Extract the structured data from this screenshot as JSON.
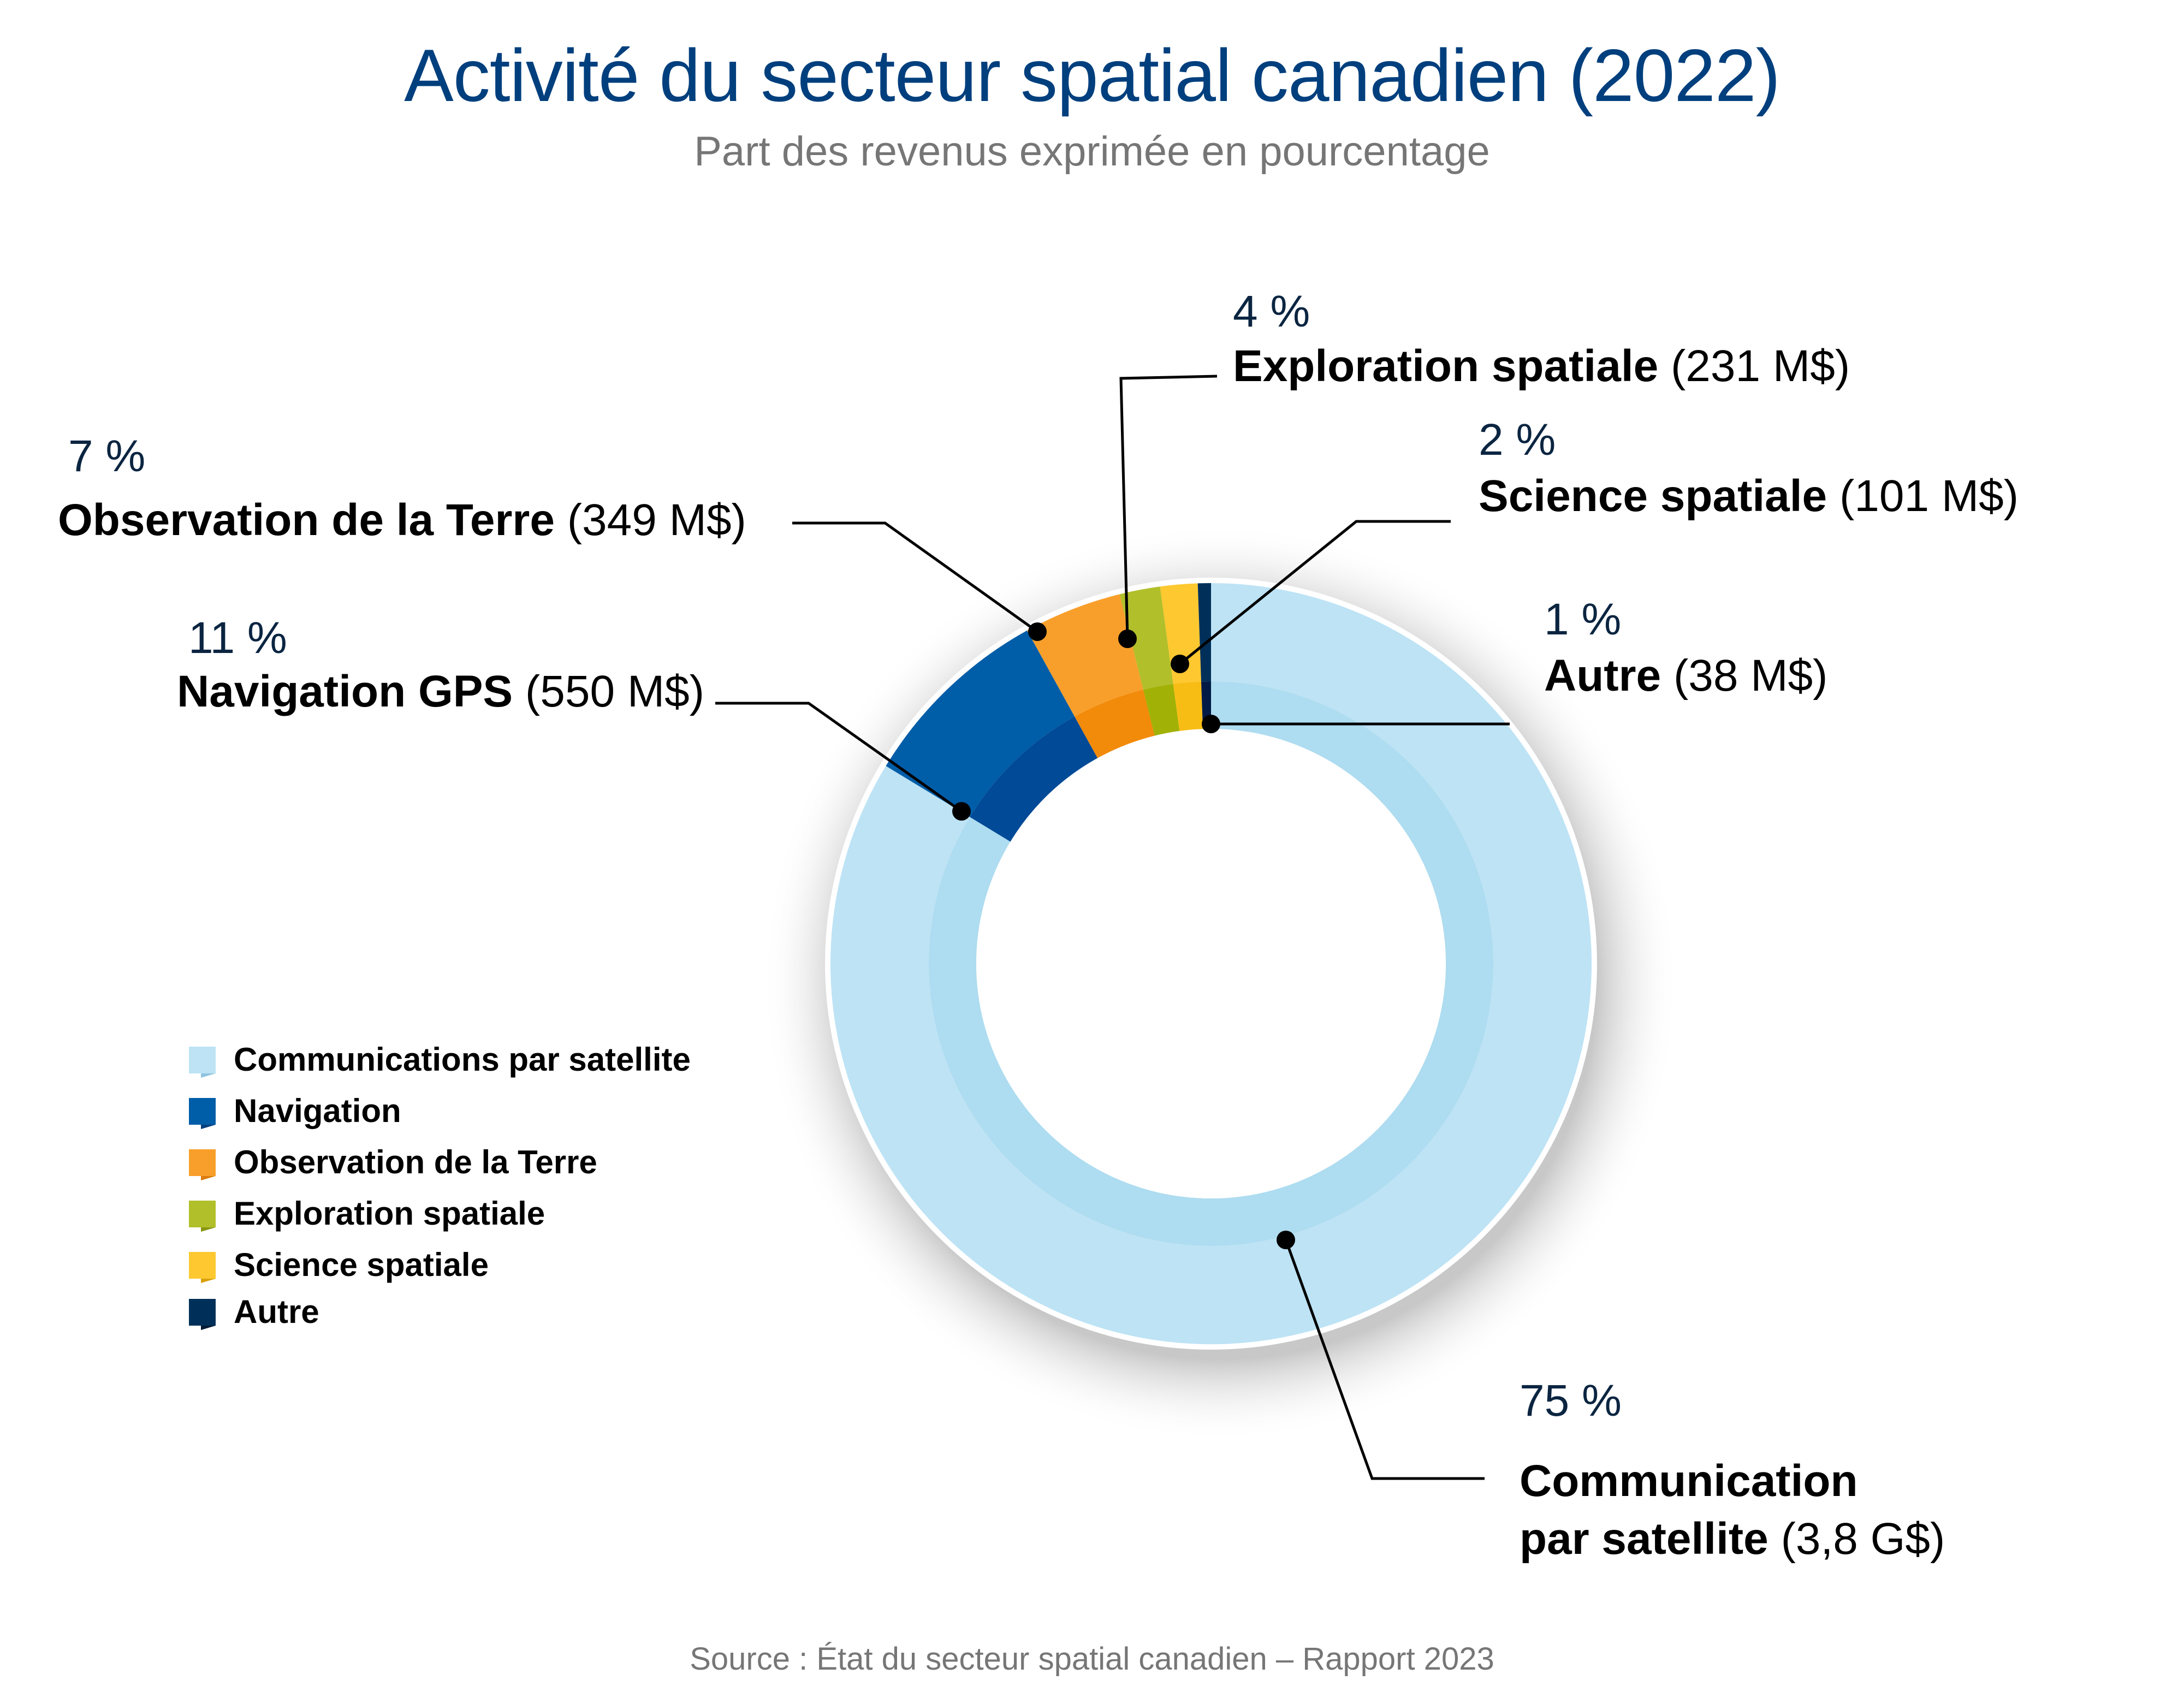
{
  "header": {
    "title": "Activité du secteur spatial canadien (2022)",
    "subtitle": "Part des revenus exprimée en pourcentage"
  },
  "footer": {
    "source": "Source : État du secteur spatial canadien – Rapport 2023"
  },
  "colors": {
    "title": "#003F7D",
    "subtitle": "#767676",
    "percent_text": "#0B2541"
  },
  "chart_data": {
    "type": "pie",
    "variant": "donut",
    "title": "Activité du secteur spatial canadien (2022)",
    "subtitle": "Part des revenus exprimée en pourcentage",
    "unit": "%",
    "legend_position": "left",
    "slices": [
      {
        "key": "communication",
        "legend": "Communications par satellite",
        "callout_line1": "Communication",
        "callout_line2": "par satellite",
        "amount": "(3,8 G$)",
        "percent": 75,
        "percent_label": "75 %",
        "color": "#BDE3F5",
        "inner_color": "#AEDCF0"
      },
      {
        "key": "navigation",
        "legend": "Navigation",
        "callout_name": "Navigation GPS",
        "amount": "(550 M$)",
        "percent": 11,
        "percent_label": "11 %",
        "color": "#005DA8",
        "inner_color": "#004A97"
      },
      {
        "key": "observation",
        "legend": "Observation de la Terre",
        "callout_name": "Observation de la Terre",
        "amount": "(349 M$)",
        "percent": 7,
        "percent_label": "7 %",
        "color": "#F89F2B",
        "inner_color": "#F28A0A"
      },
      {
        "key": "exploration",
        "legend": "Exploration spatiale",
        "callout_name": "Exploration spatiale",
        "amount": "(231 M$)",
        "percent": 4,
        "percent_label": "4 %",
        "color": "#B1BF2A",
        "inner_color": "#A2B106"
      },
      {
        "key": "science",
        "legend": "Science spatiale",
        "callout_name": "Science spatiale",
        "amount": "(101 M$)",
        "percent": 2,
        "percent_label": "2 %",
        "color": "#FDC830",
        "inner_color": "#F8BD14"
      },
      {
        "key": "autre",
        "legend": "Autre",
        "callout_name": "Autre",
        "amount": "(38 M$)",
        "percent": 1,
        "percent_label": "1 %",
        "color": "#003059",
        "inner_color": "#001A45"
      }
    ]
  }
}
